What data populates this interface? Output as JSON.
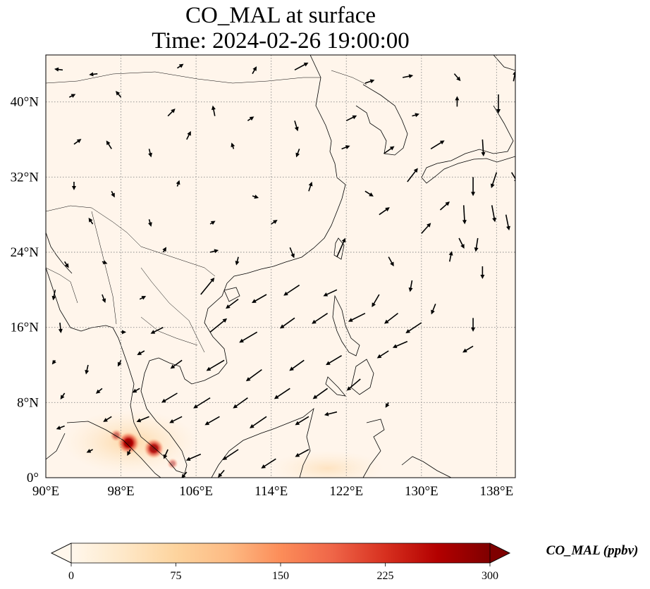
{
  "title": {
    "line1": "CO_MAL at surface",
    "line2": "Time: 2024-02-26 19:00:00"
  },
  "map": {
    "lon_range": [
      90,
      140
    ],
    "lat_range": [
      0,
      45
    ],
    "x_ticks": [
      "90°E",
      "98°E",
      "106°E",
      "114°E",
      "122°E",
      "130°E",
      "138°E"
    ],
    "x_tick_values": [
      90,
      98,
      106,
      114,
      122,
      130,
      138
    ],
    "y_ticks": [
      "0°",
      "8°N",
      "16°N",
      "24°N",
      "32°N",
      "40°N"
    ],
    "y_tick_values": [
      0,
      8,
      16,
      24,
      32,
      40
    ],
    "gridlines": "dotted",
    "background_color": "#fff5eb"
  },
  "colorbar": {
    "label": "CO_MAL (ppbv)",
    "ticks": [
      "0",
      "75",
      "150",
      "225",
      "300"
    ],
    "tick_values": [
      0,
      75,
      150,
      225,
      300
    ],
    "min": 0,
    "max": 300,
    "colormap": "OrRd",
    "colors": [
      "#fff7ec",
      "#fee8c8",
      "#fdd49e",
      "#fdbb84",
      "#fc8d59",
      "#ef6548",
      "#d7301f",
      "#b30000",
      "#7f0000"
    ],
    "extend": "both"
  },
  "hotspots": [
    {
      "lon": 98.8,
      "lat": 3.7,
      "value": 300
    },
    {
      "lon": 101.5,
      "lat": 3.1,
      "value": 260
    },
    {
      "lon": 97.5,
      "lat": 4.5,
      "value": 90
    },
    {
      "lon": 103.5,
      "lat": 1.5,
      "value": 60
    }
  ],
  "wind_vectors": [
    {
      "lon": 91.8,
      "lat": 43.4,
      "u": -0.8,
      "v": 0.1
    },
    {
      "lon": 95.5,
      "lat": 43.0,
      "u": -0.8,
      "v": -0.1
    },
    {
      "lon": 104,
      "lat": 43.6,
      "u": 0.6,
      "v": 0.4
    },
    {
      "lon": 112,
      "lat": 43.0,
      "u": 0.4,
      "v": 0.7
    },
    {
      "lon": 116.5,
      "lat": 43.4,
      "u": 1.3,
      "v": 0.7
    },
    {
      "lon": 124,
      "lat": 42.0,
      "u": 0.9,
      "v": 0.3
    },
    {
      "lon": 128,
      "lat": 42.6,
      "u": 1.0,
      "v": 0.2
    },
    {
      "lon": 133.5,
      "lat": 43.0,
      "u": 0.6,
      "v": -0.7
    },
    {
      "lon": 138.2,
      "lat": 40.8,
      "u": 0.0,
      "v": -1.8
    },
    {
      "lon": 139.8,
      "lat": 42.2,
      "u": 0.2,
      "v": 1.0
    },
    {
      "lon": 92.5,
      "lat": 40.5,
      "u": 0.6,
      "v": 0.3
    },
    {
      "lon": 98,
      "lat": 40.5,
      "u": -0.5,
      "v": 0.6
    },
    {
      "lon": 103,
      "lat": 38.5,
      "u": 0.7,
      "v": 0.7
    },
    {
      "lon": 108,
      "lat": 38.5,
      "u": -0.2,
      "v": 1.0
    },
    {
      "lon": 111.5,
      "lat": 38.0,
      "u": 0.6,
      "v": 0.4
    },
    {
      "lon": 116.5,
      "lat": 38.0,
      "u": 0.3,
      "v": -1.0
    },
    {
      "lon": 122,
      "lat": 38.0,
      "u": 1.0,
      "v": 0.5
    },
    {
      "lon": 129,
      "lat": 38.5,
      "u": 0.7,
      "v": 0.2
    },
    {
      "lon": 133.8,
      "lat": 39.5,
      "u": 0.0,
      "v": 1.0
    },
    {
      "lon": 136.5,
      "lat": 36.0,
      "u": 0.1,
      "v": -1.6
    },
    {
      "lon": 93,
      "lat": 35.5,
      "u": 0.7,
      "v": 0.5
    },
    {
      "lon": 97,
      "lat": 35.0,
      "u": -0.5,
      "v": 0.8
    },
    {
      "lon": 101,
      "lat": 35.0,
      "u": 0.2,
      "v": -0.8
    },
    {
      "lon": 105,
      "lat": 36.0,
      "u": 0.4,
      "v": 0.8
    },
    {
      "lon": 110,
      "lat": 35.0,
      "u": -0.2,
      "v": 0.6
    },
    {
      "lon": 117,
      "lat": 35.0,
      "u": -0.3,
      "v": -0.8
    },
    {
      "lon": 121.5,
      "lat": 35.0,
      "u": 0.8,
      "v": 0.3
    },
    {
      "lon": 126,
      "lat": 34.5,
      "u": 1.0,
      "v": 0.7
    },
    {
      "lon": 131,
      "lat": 35.0,
      "u": 1.3,
      "v": 0.8
    },
    {
      "lon": 135.5,
      "lat": 32.0,
      "u": 0.0,
      "v": -1.8
    },
    {
      "lon": 138,
      "lat": 32.5,
      "u": -0.5,
      "v": -1.5
    },
    {
      "lon": 139.6,
      "lat": 32.5,
      "u": 0.6,
      "v": -1.0
    },
    {
      "lon": 93,
      "lat": 31.5,
      "u": 0.0,
      "v": -0.8
    },
    {
      "lon": 97,
      "lat": 30.5,
      "u": 0.3,
      "v": -0.6
    },
    {
      "lon": 104,
      "lat": 31.0,
      "u": 0.2,
      "v": 0.6
    },
    {
      "lon": 112,
      "lat": 30.0,
      "u": 0.6,
      "v": -0.2
    },
    {
      "lon": 118,
      "lat": 30.5,
      "u": 0.3,
      "v": 0.9
    },
    {
      "lon": 124,
      "lat": 30.5,
      "u": 0.8,
      "v": -0.5
    },
    {
      "lon": 128.5,
      "lat": 31.5,
      "u": 1.0,
      "v": 1.3
    },
    {
      "lon": 132,
      "lat": 28.5,
      "u": 0.9,
      "v": 0.8
    },
    {
      "lon": 134.5,
      "lat": 29.0,
      "u": 0.1,
      "v": -1.8
    },
    {
      "lon": 137.5,
      "lat": 29.0,
      "u": 0.3,
      "v": -1.6
    },
    {
      "lon": 139,
      "lat": 28.0,
      "u": 0.3,
      "v": -1.5
    },
    {
      "lon": 95,
      "lat": 27.0,
      "u": -0.4,
      "v": 0.6
    },
    {
      "lon": 101,
      "lat": 27.5,
      "u": 0.2,
      "v": -0.7
    },
    {
      "lon": 107.5,
      "lat": 27.0,
      "u": 0.5,
      "v": 0.3
    },
    {
      "lon": 114,
      "lat": 27.0,
      "u": 0.6,
      "v": 0.4
    },
    {
      "lon": 125.5,
      "lat": 28.0,
      "u": 1.0,
      "v": 0.7
    },
    {
      "lon": 130,
      "lat": 26.0,
      "u": 0.9,
      "v": 1.0
    },
    {
      "lon": 134,
      "lat": 25.5,
      "u": 0.5,
      "v": -1.0
    },
    {
      "lon": 136,
      "lat": 25.5,
      "u": -0.2,
      "v": -1.3
    },
    {
      "lon": 92,
      "lat": 23.0,
      "u": 0.4,
      "v": -0.6
    },
    {
      "lon": 96,
      "lat": 23.0,
      "u": 0.5,
      "v": -0.2
    },
    {
      "lon": 102.5,
      "lat": 24.0,
      "u": 0.3,
      "v": 0.5
    },
    {
      "lon": 107.5,
      "lat": 24.0,
      "u": 0.8,
      "v": 0.2
    },
    {
      "lon": 110.5,
      "lat": 23.5,
      "u": -0.2,
      "v": -0.8
    },
    {
      "lon": 116,
      "lat": 24.5,
      "u": 0.4,
      "v": -1.0
    },
    {
      "lon": 121,
      "lat": 23.5,
      "u": 0.8,
      "v": 1.8
    },
    {
      "lon": 126.5,
      "lat": 23.5,
      "u": 0.5,
      "v": -0.9
    },
    {
      "lon": 133,
      "lat": 23.0,
      "u": 0.2,
      "v": 1.0
    },
    {
      "lon": 136.5,
      "lat": 22.5,
      "u": 0.0,
      "v": -1.2
    },
    {
      "lon": 91,
      "lat": 20.0,
      "u": -0.2,
      "v": -1.0
    },
    {
      "lon": 96,
      "lat": 19.5,
      "u": 0.3,
      "v": -0.8
    },
    {
      "lon": 100,
      "lat": 19.0,
      "u": 0.6,
      "v": 0.3
    },
    {
      "lon": 106.5,
      "lat": 19.5,
      "u": 1.3,
      "v": 1.6
    },
    {
      "lon": 110.5,
      "lat": 19.0,
      "u": -1.2,
      "v": -0.9
    },
    {
      "lon": 113.5,
      "lat": 19.5,
      "u": -1.4,
      "v": -0.8
    },
    {
      "lon": 117,
      "lat": 20.5,
      "u": -1.5,
      "v": -1.0
    },
    {
      "lon": 121,
      "lat": 20.0,
      "u": -1.3,
      "v": -0.6
    },
    {
      "lon": 125.5,
      "lat": 19.5,
      "u": -0.7,
      "v": -1.2
    },
    {
      "lon": 129,
      "lat": 21.0,
      "u": -0.2,
      "v": -1.1
    },
    {
      "lon": 131.5,
      "lat": 18.5,
      "u": -0.4,
      "v": -1.0
    },
    {
      "lon": 91.5,
      "lat": 16.5,
      "u": 0.1,
      "v": -1.0
    },
    {
      "lon": 98,
      "lat": 15.5,
      "u": 0.5,
      "v": 0.0
    },
    {
      "lon": 102.5,
      "lat": 16.0,
      "u": -1.2,
      "v": -0.6
    },
    {
      "lon": 107.5,
      "lat": 15.5,
      "u": 1.6,
      "v": 1.3
    },
    {
      "lon": 112.5,
      "lat": 15.5,
      "u": -1.7,
      "v": -1.0
    },
    {
      "lon": 116.5,
      "lat": 17.0,
      "u": -1.4,
      "v": -1.0
    },
    {
      "lon": 120,
      "lat": 17.5,
      "u": -1.5,
      "v": -1.0
    },
    {
      "lon": 124,
      "lat": 17.5,
      "u": -1.6,
      "v": -0.8
    },
    {
      "lon": 127.5,
      "lat": 17.5,
      "u": -1.3,
      "v": -1.0
    },
    {
      "lon": 130,
      "lat": 16.5,
      "u": -1.5,
      "v": -1.0
    },
    {
      "lon": 135.5,
      "lat": 17.0,
      "u": 0.0,
      "v": -1.3
    },
    {
      "lon": 91,
      "lat": 12.5,
      "u": -0.3,
      "v": -0.4
    },
    {
      "lon": 94.5,
      "lat": 12.0,
      "u": -0.2,
      "v": -0.9
    },
    {
      "lon": 98,
      "lat": 12.5,
      "u": -0.3,
      "v": -0.6
    },
    {
      "lon": 100.5,
      "lat": 13.5,
      "u": -0.7,
      "v": -0.4
    },
    {
      "lon": 104.5,
      "lat": 12.5,
      "u": -1.1,
      "v": -0.8
    },
    {
      "lon": 109,
      "lat": 12.5,
      "u": -1.7,
      "v": -1.0
    },
    {
      "lon": 113,
      "lat": 11.5,
      "u": -1.5,
      "v": -1.1
    },
    {
      "lon": 117.5,
      "lat": 12.5,
      "u": -1.4,
      "v": -1.0
    },
    {
      "lon": 121.5,
      "lat": 13.0,
      "u": -1.5,
      "v": -0.9
    },
    {
      "lon": 126.5,
      "lat": 13.5,
      "u": -1.1,
      "v": -0.7
    },
    {
      "lon": 128.5,
      "lat": 14.5,
      "u": -1.4,
      "v": -0.6
    },
    {
      "lon": 135.5,
      "lat": 14.0,
      "u": -1.0,
      "v": -0.6
    },
    {
      "lon": 92,
      "lat": 9.0,
      "u": -0.4,
      "v": -0.6
    },
    {
      "lon": 96,
      "lat": 9.5,
      "u": -0.6,
      "v": -0.5
    },
    {
      "lon": 100,
      "lat": 9.5,
      "u": -0.7,
      "v": -0.4
    },
    {
      "lon": 104,
      "lat": 9.0,
      "u": -1.5,
      "v": -0.9
    },
    {
      "lon": 107.5,
      "lat": 8.5,
      "u": -1.6,
      "v": -1.0
    },
    {
      "lon": 111.5,
      "lat": 8.5,
      "u": -1.4,
      "v": -1.0
    },
    {
      "lon": 116,
      "lat": 9.5,
      "u": -1.5,
      "v": -1.0
    },
    {
      "lon": 120,
      "lat": 9.5,
      "u": -1.4,
      "v": -1.0
    },
    {
      "lon": 123.5,
      "lat": 10.5,
      "u": -1.3,
      "v": -1.1
    },
    {
      "lon": 126.5,
      "lat": 8.0,
      "u": -0.3,
      "v": -0.5
    },
    {
      "lon": 92,
      "lat": 5.5,
      "u": -0.8,
      "v": -0.3
    },
    {
      "lon": 97,
      "lat": 6.5,
      "u": -0.8,
      "v": -0.5
    },
    {
      "lon": 101,
      "lat": 6.5,
      "u": -1.2,
      "v": -0.5
    },
    {
      "lon": 104.5,
      "lat": 6.5,
      "u": -1.2,
      "v": -0.6
    },
    {
      "lon": 108.5,
      "lat": 6.5,
      "u": -1.4,
      "v": -0.8
    },
    {
      "lon": 113.5,
      "lat": 6.5,
      "u": -1.6,
      "v": -1.1
    },
    {
      "lon": 118,
      "lat": 6.5,
      "u": -1.3,
      "v": -0.8
    },
    {
      "lon": 121,
      "lat": 7.0,
      "u": -1.2,
      "v": -0.3
    },
    {
      "lon": 95,
      "lat": 3.0,
      "u": -0.6,
      "v": -0.3
    },
    {
      "lon": 99,
      "lat": 3.0,
      "u": -0.3,
      "v": -0.6
    },
    {
      "lon": 103,
      "lat": 3.0,
      "u": -0.4,
      "v": -0.9
    },
    {
      "lon": 106.5,
      "lat": 2.5,
      "u": -1.4,
      "v": -0.6
    },
    {
      "lon": 110.5,
      "lat": 3.0,
      "u": -1.5,
      "v": -1.0
    },
    {
      "lon": 114.5,
      "lat": 2.0,
      "u": -1.4,
      "v": -0.9
    },
    {
      "lon": 118,
      "lat": 3.0,
      "u": -1.3,
      "v": -0.7
    },
    {
      "lon": 105,
      "lat": 0.6,
      "u": -0.5,
      "v": -0.6
    },
    {
      "lon": 109,
      "lat": 0.8,
      "u": -0.6,
      "v": -0.7
    }
  ]
}
